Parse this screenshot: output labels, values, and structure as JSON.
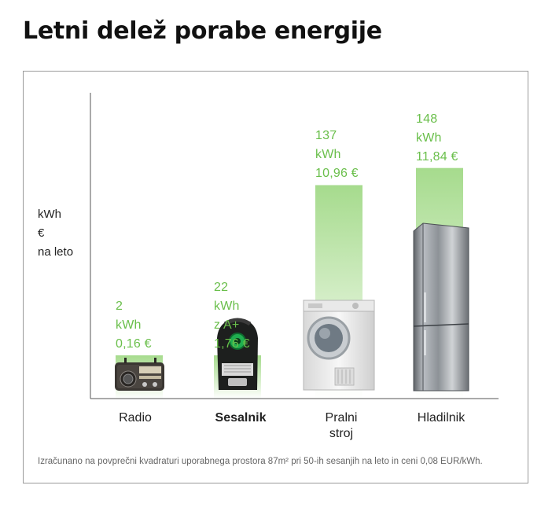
{
  "chart_data": {
    "type": "bar",
    "title": "Letni delež porabe energije",
    "ylabel": [
      "kWh",
      "€",
      "na leto"
    ],
    "ylim": [
      0,
      165
    ],
    "grid": false,
    "categories": [
      "Radio",
      "Sesalnik",
      "Pralni stroj",
      "Hladilnik"
    ],
    "category_lines": [
      [
        "Radio"
      ],
      [
        "Sesalnik"
      ],
      [
        "Pralni",
        "stroj"
      ],
      [
        "Hladilnik"
      ]
    ],
    "highlighted_category": "Sesalnik",
    "values": [
      2,
      22,
      137,
      148
    ],
    "value_labels": [
      [
        "2",
        "kWh",
        "0,16 €"
      ],
      [
        "22",
        "kWh",
        "z A+",
        "1,76 €"
      ],
      [
        "137",
        "kWh",
        "10,96 €"
      ],
      [
        "148",
        "kWh",
        "11,84 €"
      ]
    ],
    "costs_eur": [
      0.16,
      1.76,
      10.96,
      11.84
    ],
    "footnote": "Izračunano na povprečni kvadraturi uporabnega prostora 87m² pri 50-ih sesanjih na leto in ceni 0,08 EUR/kWh.",
    "colors": {
      "accent": "#6abf4b",
      "bar_top": "#a6db8d",
      "bar_bottom": "#ffffff",
      "axis": "#555555"
    },
    "icons": [
      "radio-image",
      "vacuum-cleaner-image",
      "washing-machine-image",
      "refrigerator-image"
    ]
  }
}
